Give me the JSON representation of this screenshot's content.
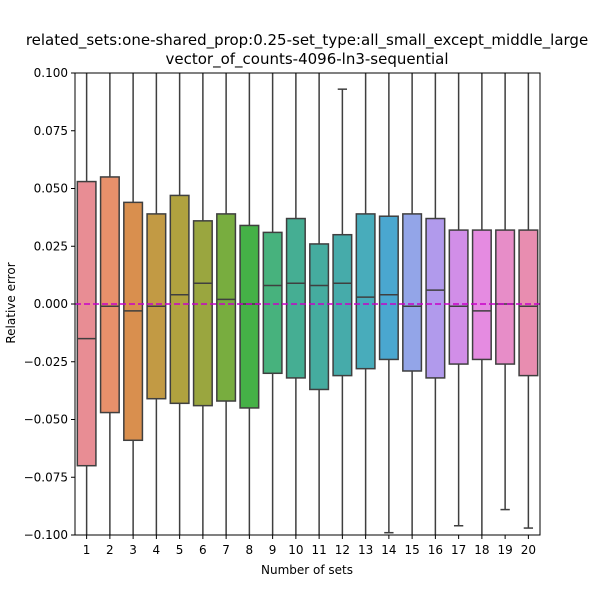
{
  "chart_data": {
    "type": "box",
    "title_line1": "related_sets:one-shared_prop:0.25-set_type:all_small_except_middle_large",
    "title_line2": "vector_of_counts-4096-ln3-sequential",
    "xlabel": "Number of sets",
    "ylabel": "Relative error",
    "ylim": [
      -0.1,
      0.1
    ],
    "yticks": [
      -0.1,
      -0.075,
      -0.05,
      -0.025,
      0.0,
      0.025,
      0.05,
      0.075,
      0.1
    ],
    "ytick_labels": [
      "−0.100",
      "−0.075",
      "−0.050",
      "−0.025",
      "0.000",
      "0.025",
      "0.050",
      "0.075",
      "0.100"
    ],
    "reference_line": {
      "y": 0.0,
      "color": "#c800c8",
      "style": "dashed"
    },
    "categories": [
      "1",
      "2",
      "3",
      "4",
      "5",
      "6",
      "7",
      "8",
      "9",
      "10",
      "11",
      "12",
      "13",
      "14",
      "15",
      "16",
      "17",
      "18",
      "19",
      "20"
    ],
    "boxes": [
      {
        "q1": -0.07,
        "median": -0.015,
        "q3": 0.053,
        "whisker_low": -0.1,
        "whisker_high": 0.1,
        "color": "#e88d94"
      },
      {
        "q1": -0.047,
        "median": -0.001,
        "q3": 0.055,
        "whisker_low": -0.1,
        "whisker_high": 0.1,
        "color": "#e7906b"
      },
      {
        "q1": -0.059,
        "median": -0.003,
        "q3": 0.044,
        "whisker_low": -0.1,
        "whisker_high": 0.1,
        "color": "#d98f4e"
      },
      {
        "q1": -0.041,
        "median": -0.001,
        "q3": 0.039,
        "whisker_low": -0.1,
        "whisker_high": 0.1,
        "color": "#c29a44"
      },
      {
        "q1": -0.043,
        "median": 0.004,
        "q3": 0.047,
        "whisker_low": -0.1,
        "whisker_high": 0.1,
        "color": "#b0a23f"
      },
      {
        "q1": -0.044,
        "median": 0.009,
        "q3": 0.036,
        "whisker_low": -0.1,
        "whisker_high": 0.1,
        "color": "#9aa63f"
      },
      {
        "q1": -0.042,
        "median": 0.002,
        "q3": 0.039,
        "whisker_low": -0.1,
        "whisker_high": 0.1,
        "color": "#78ad3f"
      },
      {
        "q1": -0.045,
        "median": 0.0,
        "q3": 0.034,
        "whisker_low": -0.1,
        "whisker_high": 0.1,
        "color": "#45b147"
      },
      {
        "q1": -0.03,
        "median": 0.008,
        "q3": 0.031,
        "whisker_low": -0.1,
        "whisker_high": 0.1,
        "color": "#47b27d"
      },
      {
        "q1": -0.032,
        "median": 0.009,
        "q3": 0.037,
        "whisker_low": -0.1,
        "whisker_high": 0.1,
        "color": "#45ae93"
      },
      {
        "q1": -0.037,
        "median": 0.008,
        "q3": 0.026,
        "whisker_low": -0.1,
        "whisker_high": 0.1,
        "color": "#45ac9f"
      },
      {
        "q1": -0.031,
        "median": 0.009,
        "q3": 0.03,
        "whisker_low": -0.1,
        "whisker_high": 0.093,
        "color": "#46abaa"
      },
      {
        "q1": -0.028,
        "median": 0.003,
        "q3": 0.039,
        "whisker_low": -0.1,
        "whisker_high": 0.1,
        "color": "#48acbb"
      },
      {
        "q1": -0.024,
        "median": 0.004,
        "q3": 0.038,
        "whisker_low": -0.099,
        "whisker_high": 0.1,
        "color": "#4aa7d0"
      },
      {
        "q1": -0.029,
        "median": -0.001,
        "q3": 0.039,
        "whisker_low": -0.1,
        "whisker_high": 0.1,
        "color": "#93a5e8"
      },
      {
        "q1": -0.032,
        "median": 0.006,
        "q3": 0.037,
        "whisker_low": -0.1,
        "whisker_high": 0.1,
        "color": "#b19aec"
      },
      {
        "q1": -0.026,
        "median": -0.001,
        "q3": 0.032,
        "whisker_low": -0.096,
        "whisker_high": 0.1,
        "color": "#d18ee8"
      },
      {
        "q1": -0.024,
        "median": -0.003,
        "q3": 0.032,
        "whisker_low": -0.1,
        "whisker_high": 0.1,
        "color": "#e58be1"
      },
      {
        "q1": -0.026,
        "median": 0.0,
        "q3": 0.032,
        "whisker_low": -0.089,
        "whisker_high": 0.1,
        "color": "#e78dc8"
      },
      {
        "q1": -0.031,
        "median": -0.001,
        "q3": 0.032,
        "whisker_low": -0.097,
        "whisker_high": 0.1,
        "color": "#e88db0"
      }
    ]
  }
}
